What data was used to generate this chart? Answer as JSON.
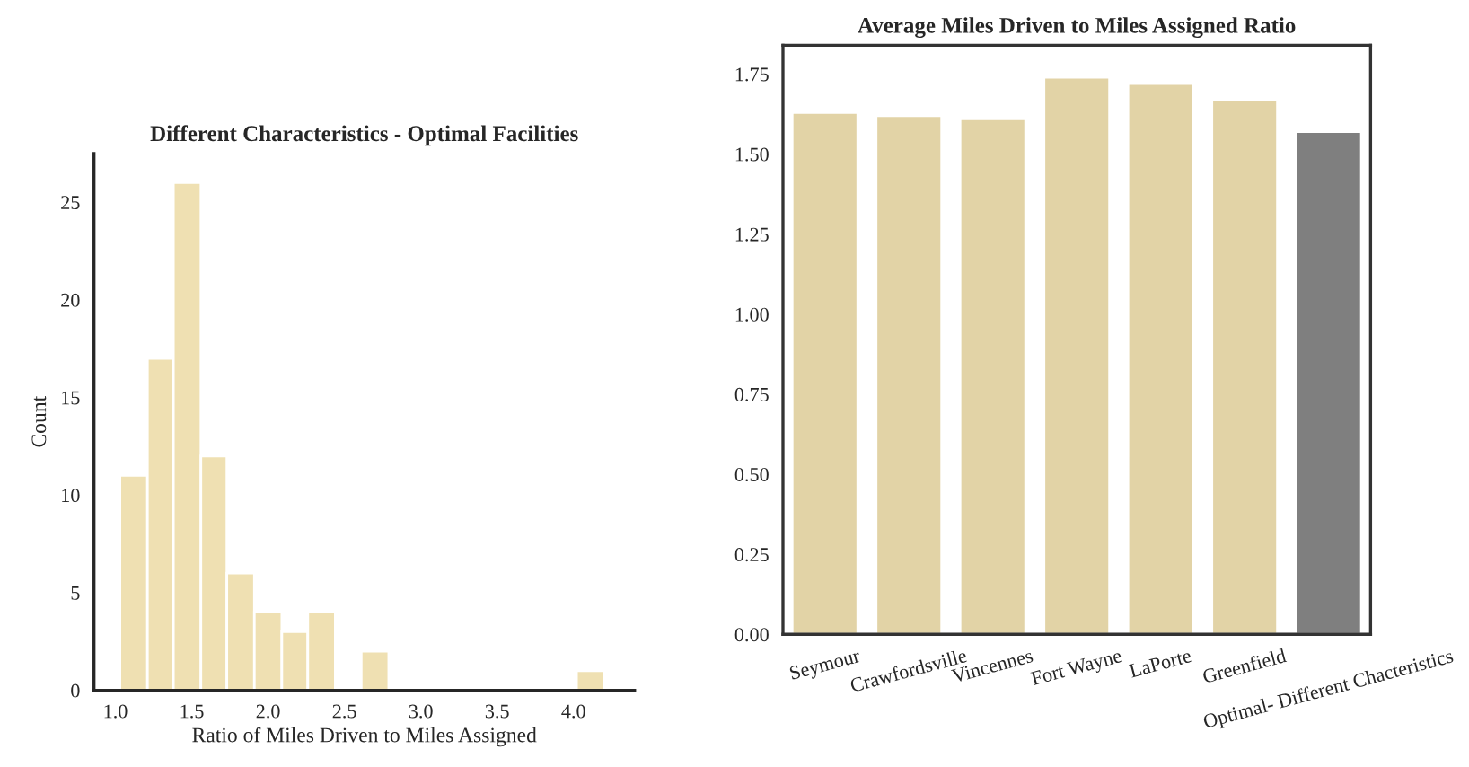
{
  "chart_data": [
    {
      "type": "histogram",
      "title": "Different Characteristics - Optimal Facilities",
      "xlabel": "Ratio of Miles Driven to Miles Assigned",
      "ylabel": "Count",
      "bins": [
        1.03,
        1.21,
        1.38,
        1.56,
        1.73,
        1.91,
        2.09,
        2.26,
        2.44,
        2.61,
        2.79,
        4.02,
        4.2
      ],
      "values": [
        11,
        17,
        26,
        12,
        6,
        4,
        3,
        4,
        0,
        2,
        0,
        1
      ],
      "color": "#efe0b2",
      "xlim": [
        0.86,
        4.4
      ],
      "xticks": [
        {
          "value": 1,
          "label": "1.0"
        },
        {
          "value": 1.5,
          "label": "1.5"
        },
        {
          "value": 2,
          "label": "2.0"
        },
        {
          "value": 2.5,
          "label": "2.5"
        },
        {
          "value": 3,
          "label": "3.0"
        },
        {
          "value": 3.5,
          "label": "3.5"
        },
        {
          "value": 4,
          "label": "4.0"
        }
      ],
      "ylim": [
        0,
        27.5
      ],
      "yticks": [
        0,
        5,
        10,
        15,
        20,
        25
      ],
      "grid": false
    },
    {
      "type": "bar",
      "title": "Average Miles Driven to Miles Assigned Ratio",
      "categories": [
        "Seymour",
        "Crawfordsville",
        "Vincennes",
        "Fort Wayne",
        "LaPorte",
        "Greenfield",
        "Optimal- Different Chacteristics"
      ],
      "values": [
        1.63,
        1.62,
        1.61,
        1.74,
        1.72,
        1.67,
        1.57
      ],
      "colors": [
        "#e2d3a6",
        "#e2d3a6",
        "#e2d3a6",
        "#e2d3a6",
        "#e2d3a6",
        "#e2d3a6",
        "#7f7f7f"
      ],
      "ylim": [
        0,
        1.84
      ],
      "yticks": [
        {
          "value": 0,
          "label": "0.00"
        },
        {
          "value": 0.25,
          "label": "0.25"
        },
        {
          "value": 0.5,
          "label": "0.50"
        },
        {
          "value": 0.75,
          "label": "0.75"
        },
        {
          "value": 1,
          "label": "1.00"
        },
        {
          "value": 1.25,
          "label": "1.25"
        },
        {
          "value": 1.5,
          "label": "1.50"
        },
        {
          "value": 1.75,
          "label": "1.75"
        }
      ],
      "grid": false
    }
  ]
}
